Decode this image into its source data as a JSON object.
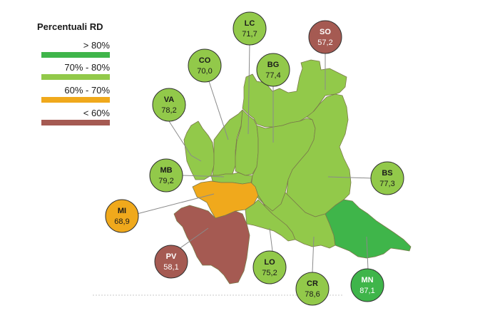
{
  "legend": {
    "title": "Percentuali RD",
    "items": [
      {
        "label": "> 80%",
        "color": "#3fb54a"
      },
      {
        "label": "70% - 80%",
        "color": "#92c94a"
      },
      {
        "label": "60% - 70%",
        "color": "#f0a91c"
      },
      {
        "label": "< 60%",
        "color": "#a55a52"
      }
    ]
  },
  "provinces": [
    {
      "id": "VA",
      "code": "VA",
      "value": "78,2",
      "category": 1
    },
    {
      "id": "CO",
      "code": "CO",
      "value": "70,0",
      "category": 1
    },
    {
      "id": "LC",
      "code": "LC",
      "value": "71,7",
      "category": 1
    },
    {
      "id": "SO",
      "code": "SO",
      "value": "57,2",
      "category": 3
    },
    {
      "id": "BG",
      "code": "BG",
      "value": "77,4",
      "category": 1
    },
    {
      "id": "BS",
      "code": "BS",
      "value": "77,3",
      "category": 1
    },
    {
      "id": "MB",
      "code": "MB",
      "value": "79,2",
      "category": 1
    },
    {
      "id": "MI",
      "code": "MI",
      "value": "68,9",
      "category": 2
    },
    {
      "id": "PV",
      "code": "PV",
      "value": "58,1",
      "category": 3
    },
    {
      "id": "LO",
      "code": "LO",
      "value": "75,2",
      "category": 1
    },
    {
      "id": "CR",
      "code": "CR",
      "value": "78,6",
      "category": 1
    },
    {
      "id": "MN",
      "code": "MN",
      "value": "87,1",
      "category": 0
    }
  ]
}
